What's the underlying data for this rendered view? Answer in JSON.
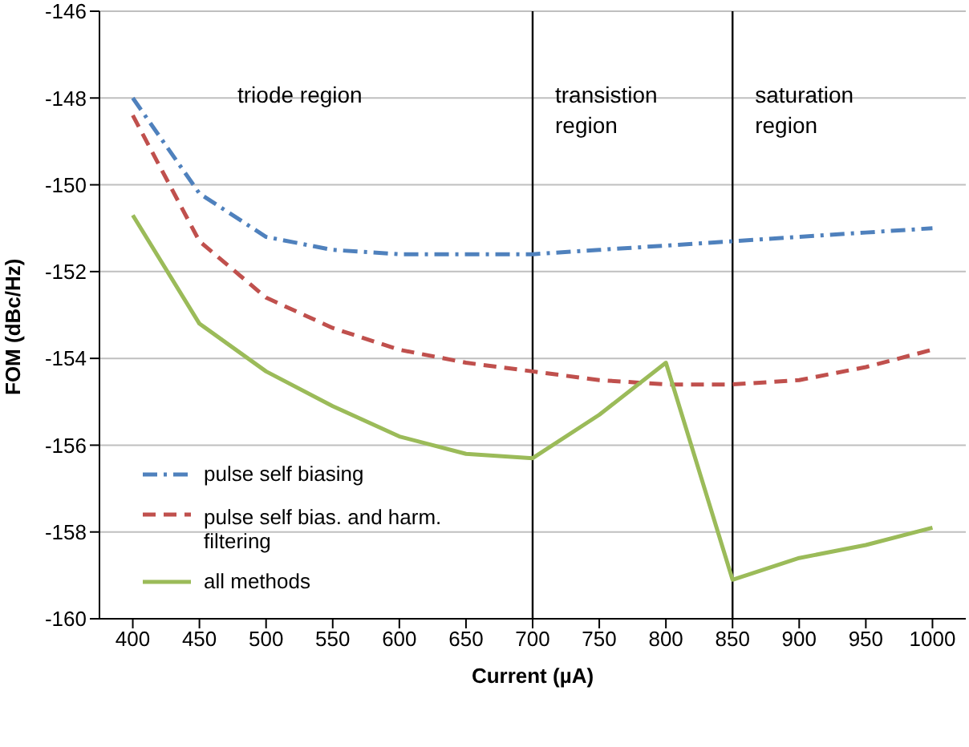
{
  "chart_data": {
    "type": "line",
    "xlabel": "Current (µA)",
    "ylabel": "FOM (dBc/Hz)",
    "categories": [
      "400",
      "450",
      "500",
      "550",
      "600",
      "650",
      "700",
      "750",
      "800",
      "850",
      "900",
      "950",
      "1000"
    ],
    "series": [
      {
        "name": "pulse self biasing",
        "color": "#4f81bd",
        "line_style": "dashdot",
        "values": [
          -148.0,
          -150.2,
          -151.2,
          -151.5,
          -151.6,
          -151.6,
          -151.6,
          -151.5,
          -151.4,
          -151.3,
          -151.2,
          -151.1,
          -151.0
        ]
      },
      {
        "name": "pulse self bias. and harm. filtering",
        "color": "#c0504d",
        "line_style": "dashed",
        "values": [
          -148.4,
          -151.3,
          -152.6,
          -153.3,
          -153.8,
          -154.1,
          -154.3,
          -154.5,
          -154.6,
          -154.6,
          -154.5,
          -154.2,
          -153.8
        ]
      },
      {
        "name": "all methods",
        "color": "#9bbb59",
        "line_style": "solid",
        "values": [
          -150.7,
          -153.2,
          -154.3,
          -155.1,
          -155.8,
          -156.2,
          -156.3,
          -155.3,
          -154.1,
          -159.1,
          -158.6,
          -158.3,
          -157.9
        ]
      }
    ],
    "ylim": [
      -160,
      -146
    ],
    "yticks": [
      -160,
      -158,
      -156,
      -154,
      -152,
      -150,
      -148,
      -146
    ],
    "grid": "y",
    "legend": "bottom left",
    "marker": "none",
    "ref_lines": [
      {
        "axis": "x",
        "value": "700",
        "color": "#000000"
      },
      {
        "axis": "x",
        "value": "850",
        "color": "#000000"
      }
    ],
    "annotations": [
      "triode region",
      "transistion region",
      "saturation region"
    ]
  }
}
